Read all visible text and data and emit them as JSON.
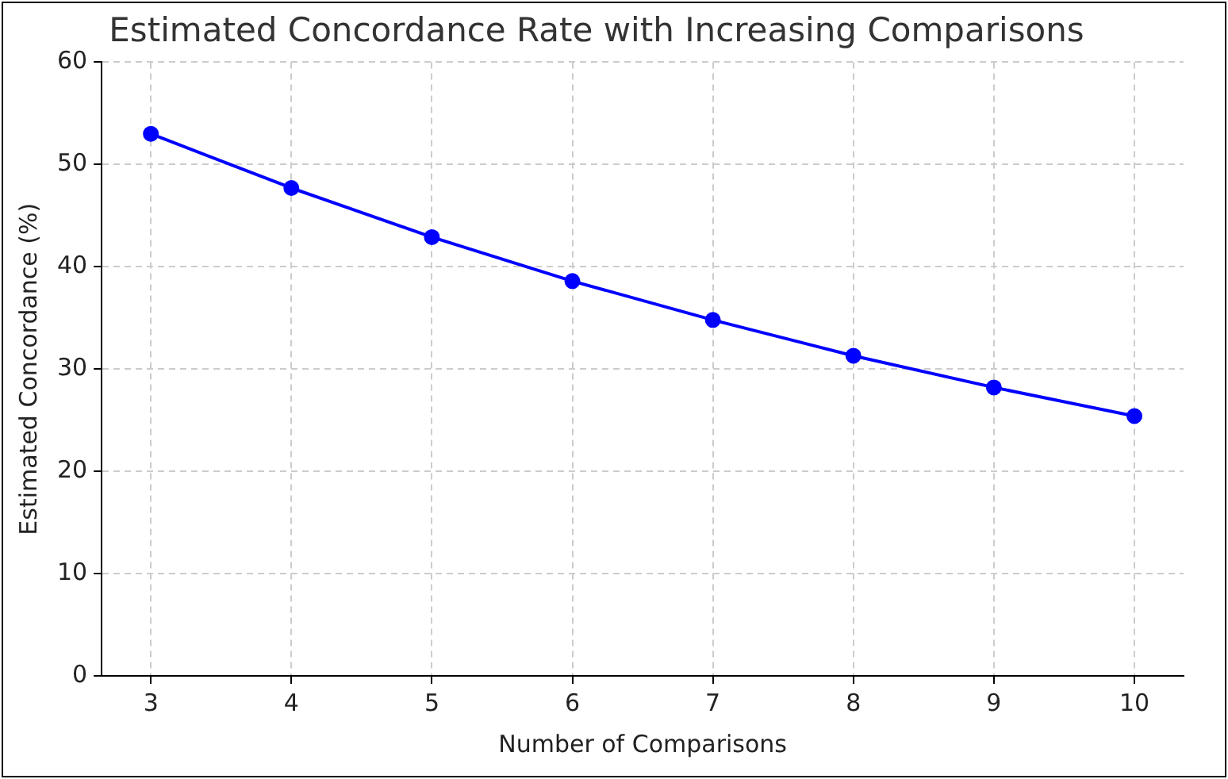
{
  "chart_data": {
    "type": "line",
    "title": "Estimated Concordance Rate with Increasing Comparisons",
    "xlabel": "Number of Comparisons",
    "ylabel": "Estimated Concordance (%)",
    "x": [
      3,
      4,
      5,
      6,
      7,
      8,
      9,
      10
    ],
    "series": [
      {
        "color": "#0000ff",
        "values": [
          53.0,
          47.7,
          42.9,
          38.6,
          34.8,
          31.3,
          28.2,
          25.4
        ]
      }
    ],
    "xlim": [
      2.65,
      10.35
    ],
    "xticks": [
      3,
      4,
      5,
      6,
      7,
      8,
      9,
      10
    ],
    "ylim": [
      0,
      60
    ],
    "yticks": [
      0,
      10,
      20,
      30,
      40,
      50,
      60
    ],
    "grid": true,
    "marker": "circle",
    "line_style": "solid"
  }
}
